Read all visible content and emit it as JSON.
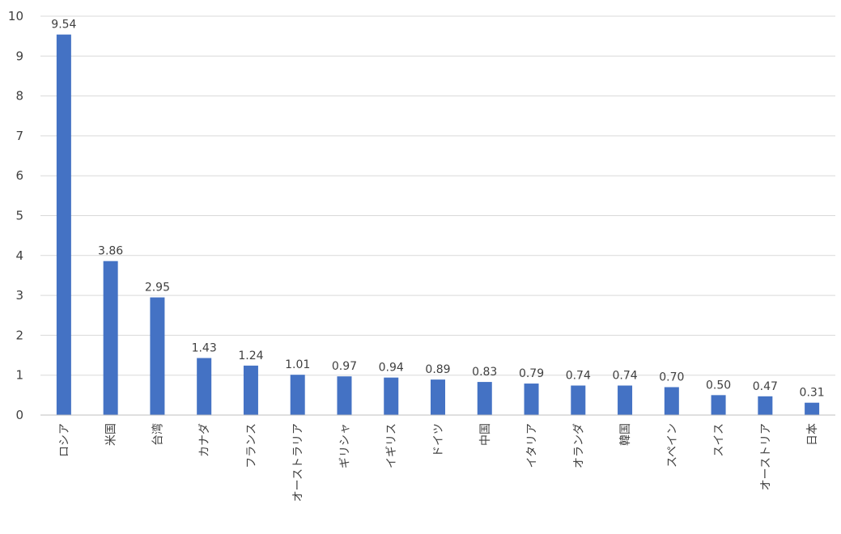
{
  "chart_data": {
    "type": "bar",
    "categories": [
      "ロシア",
      "米国",
      "台湾",
      "カナダ",
      "フランス",
      "オーストラリア",
      "ギリシャ",
      "イギリス",
      "ドイツ",
      "中国",
      "イタリア",
      "オランダ",
      "韓国",
      "スペイン",
      "スイス",
      "オーストリア",
      "日本"
    ],
    "values": [
      9.54,
      3.86,
      2.95,
      1.43,
      1.24,
      1.01,
      0.97,
      0.94,
      0.89,
      0.83,
      0.79,
      0.74,
      0.74,
      0.7,
      0.5,
      0.47,
      0.31
    ],
    "value_labels": [
      "9.54",
      "3.86",
      "2.95",
      "1.43",
      "1.24",
      "1.01",
      "0.97",
      "0.94",
      "0.89",
      "0.83",
      "0.79",
      "0.74",
      "0.74",
      "0.70",
      "0.50",
      "0.47",
      "0.31"
    ],
    "title": "",
    "xlabel": "",
    "ylabel": "",
    "ylim": [
      0,
      10
    ],
    "yticks": [
      0,
      1,
      2,
      3,
      4,
      5,
      6,
      7,
      8,
      9,
      10
    ],
    "grid": true,
    "legend": "none",
    "bar_color": "#4472c4"
  }
}
